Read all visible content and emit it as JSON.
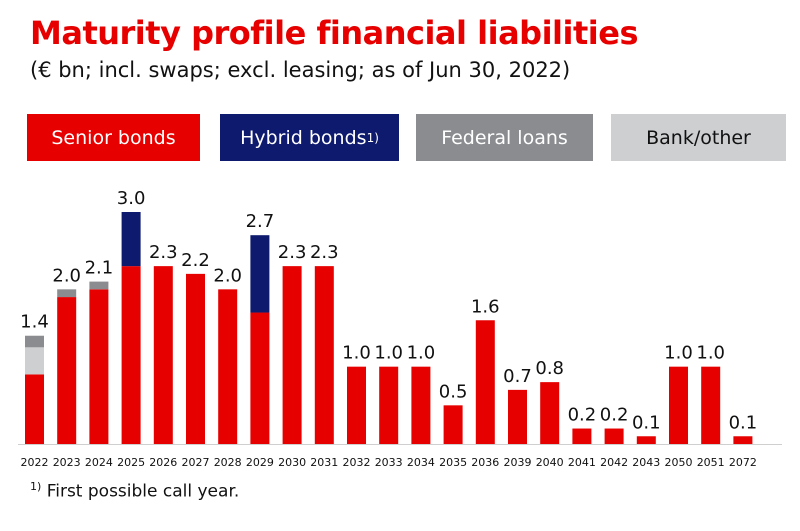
{
  "title": "Maturity profile financial liabilities",
  "subtitle": "(€ bn; incl. swaps; excl. leasing; as of Jun 30, 2022)",
  "legend": [
    {
      "label": "Senior bonds",
      "sup": "",
      "color": "#e60000",
      "text_color": "#ffffff"
    },
    {
      "label": "Hybrid bonds",
      "sup": "1)",
      "color": "#0d1a6e",
      "text_color": "#ffffff"
    },
    {
      "label": "Federal loans",
      "sup": "",
      "color": "#8a8c8f",
      "text_color": "#ffffff"
    },
    {
      "label": "Bank/other",
      "sup": "",
      "color": "#cdcfd1",
      "text_color": "#111111"
    }
  ],
  "footnote": {
    "marker": "1)",
    "text": " First possible call year."
  },
  "chart_data": {
    "type": "bar",
    "stacked": true,
    "categories": [
      "2022",
      "2023",
      "2024",
      "2025",
      "2026",
      "2027",
      "2028",
      "2029",
      "2030",
      "2031",
      "2032",
      "2033",
      "2034",
      "2035",
      "2036",
      "2039",
      "2040",
      "2041",
      "2042",
      "2043",
      "2050",
      "2051",
      "2072"
    ],
    "series": [
      {
        "name": "Senior bonds",
        "color": "#e60000",
        "values": [
          0.9,
          1.9,
          2.0,
          2.3,
          2.3,
          2.2,
          2.0,
          1.7,
          2.3,
          2.3,
          1.0,
          1.0,
          1.0,
          0.5,
          1.6,
          0.7,
          0.8,
          0.2,
          0.2,
          0.1,
          1.0,
          1.0,
          0.1
        ]
      },
      {
        "name": "Hybrid bonds",
        "color": "#0d1a6e",
        "values": [
          0,
          0,
          0,
          0.7,
          0,
          0,
          0,
          1.0,
          0,
          0,
          0,
          0,
          0,
          0,
          0,
          0,
          0,
          0,
          0,
          0,
          0,
          0,
          0
        ]
      },
      {
        "name": "Bank/other",
        "color": "#cdcfd1",
        "values": [
          0.35,
          0,
          0,
          0,
          0,
          0,
          0,
          0,
          0,
          0,
          0,
          0,
          0,
          0,
          0,
          0,
          0,
          0,
          0,
          0,
          0,
          0,
          0
        ]
      },
      {
        "name": "Federal loans",
        "color": "#8a8c8f",
        "values": [
          0.15,
          0.1,
          0.1,
          0,
          0,
          0,
          0,
          0,
          0,
          0,
          0,
          0,
          0,
          0,
          0,
          0,
          0,
          0,
          0,
          0,
          0,
          0,
          0
        ]
      }
    ],
    "totals": [
      "1.4",
      "2.0",
      "2.1",
      "3.0",
      "2.3",
      "2.2",
      "2.0",
      "2.7",
      "2.3",
      "2.3",
      "1.0",
      "1.0",
      "1.0",
      "0.5",
      "1.6",
      "0.7",
      "0.8",
      "0.2",
      "0.2",
      "0.1",
      "1.0",
      "1.0",
      "0.1"
    ],
    "ylim": [
      0,
      3.0
    ],
    "grid": false
  }
}
